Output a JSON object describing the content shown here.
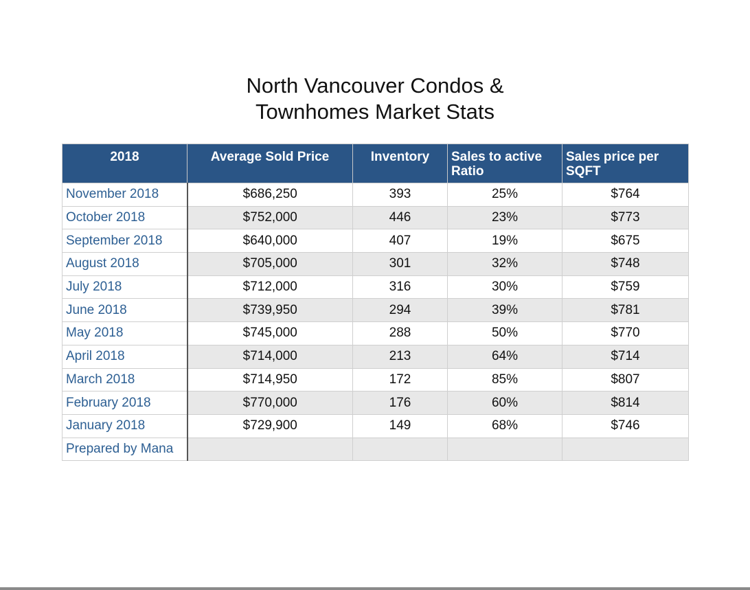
{
  "title": {
    "line1": "North Vancouver Condos &",
    "line2": "Townhomes Market Stats"
  },
  "table": {
    "headers": [
      "2018",
      "Average Sold Price",
      "Inventory",
      "Sales to active Ratio",
      "Sales price per SQFT"
    ],
    "rows": [
      [
        "November 2018",
        "$686,250",
        "393",
        "25%",
        "$764"
      ],
      [
        "October 2018",
        "$752,000",
        "446",
        "23%",
        "$773"
      ],
      [
        "September 2018",
        "$640,000",
        "407",
        "19%",
        "$675"
      ],
      [
        "August 2018",
        "$705,000",
        "301",
        "32%",
        "$748"
      ],
      [
        "July 2018",
        "$712,000",
        "316",
        "30%",
        "$759"
      ],
      [
        "June 2018",
        "$739,950",
        "294",
        "39%",
        "$781"
      ],
      [
        "May 2018",
        "$745,000",
        "288",
        "50%",
        "$770"
      ],
      [
        "April 2018",
        "$714,000",
        "213",
        "64%",
        "$714"
      ],
      [
        "March 2018",
        "$714,950",
        "172",
        "85%",
        "$807"
      ],
      [
        "February 2018",
        "$770,000",
        "176",
        "60%",
        "$814"
      ],
      [
        "January 2018",
        "$729,900",
        "149",
        "68%",
        "$746"
      ]
    ],
    "footer": "Prepared by Mana"
  },
  "colors": {
    "header_bg": "#2a5586",
    "header_text": "#ffffff",
    "month_text": "#2d5f93",
    "stripe": "#e8e8e8"
  }
}
